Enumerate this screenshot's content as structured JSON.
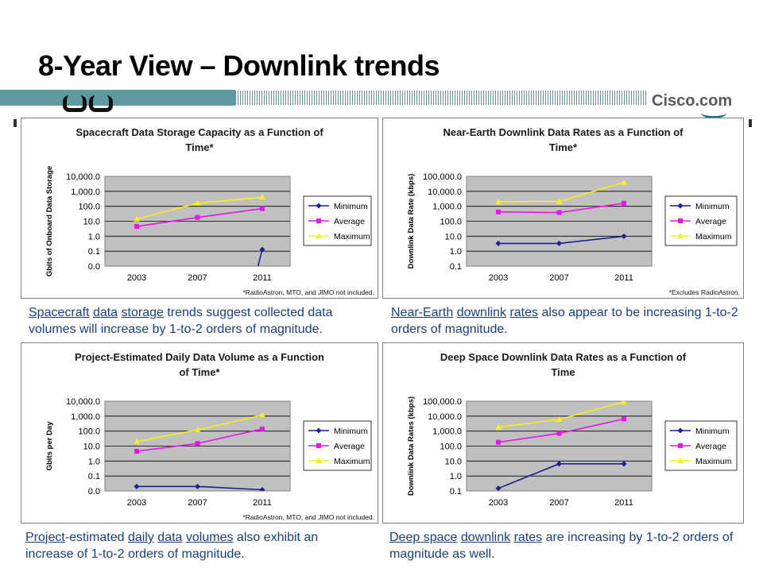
{
  "slide": {
    "title": "8-Year View – Downlink trends",
    "logo_text": "Cisco.com"
  },
  "colors": {
    "minimum": "#1f1f8f",
    "average": "#e617e6",
    "maximum": "#f2f21a",
    "plot_bg": "#c0c0c0",
    "caption": "#1c3f7a",
    "band": "#5f9aa2"
  },
  "chart_data": [
    {
      "type": "line",
      "title_line1": "Spacecraft Data Storage Capacity as a Function of",
      "title_line2": "Time*",
      "ylabel": "Gbits of Onboard Data Storage",
      "xlabel": "",
      "x": [
        "2003",
        "2007",
        "2011"
      ],
      "y_ticks": [
        "0.0",
        "0.1",
        "1.0",
        "10.0",
        "100.0",
        "1,000.0",
        "10,000.0"
      ],
      "y_scale": "log",
      "series": [
        {
          "name": "Minimum",
          "values": [
            null,
            null,
            0.13
          ]
        },
        {
          "name": "Average",
          "values": [
            4.5,
            18,
            70
          ]
        },
        {
          "name": "Maximum",
          "values": [
            14,
            160,
            400
          ]
        }
      ],
      "footnote": "*RadioAstron, MTO, and JIMO not included.",
      "legend": "right"
    },
    {
      "type": "line",
      "title_line1": "Near-Earth Downlink Data Rates as a Function of",
      "title_line2": "Time*",
      "ylabel": "Downlink Data Rate (kbps)",
      "xlabel": "",
      "x": [
        "2003",
        "2007",
        "2011"
      ],
      "y_ticks": [
        "0.1",
        "1.0",
        "10.0",
        "100.0",
        "1,000.0",
        "10,000.0",
        "100,000.0"
      ],
      "y_scale": "log",
      "series": [
        {
          "name": "Minimum",
          "values": [
            3.3,
            3.3,
            10
          ]
        },
        {
          "name": "Average",
          "values": [
            420,
            380,
            1600
          ]
        },
        {
          "name": "Maximum",
          "values": [
            2000,
            2100,
            40000
          ]
        }
      ],
      "footnote": "*Excludes RadioAstron.",
      "legend": "right"
    },
    {
      "type": "line",
      "title_line1": "Project-Estimated Daily Data Volume as a Function",
      "title_line2": "of Time*",
      "ylabel": "Gbits per Day",
      "xlabel": "",
      "x": [
        "2003",
        "2007",
        "2011"
      ],
      "y_ticks": [
        "0.0",
        "0.1",
        "1.0",
        "10.0",
        "100.0",
        "1,000.0",
        "10,000.0"
      ],
      "y_scale": "log",
      "series": [
        {
          "name": "Minimum",
          "values": [
            0.02,
            0.02,
            0.012
          ]
        },
        {
          "name": "Average",
          "values": [
            4.5,
            15,
            140
          ]
        },
        {
          "name": "Maximum",
          "values": [
            20,
            120,
            1200
          ]
        }
      ],
      "footnote": "*RadioAstron, MTO, and JIMO not included.",
      "legend": "right"
    },
    {
      "type": "line",
      "title_line1": "Deep Space Downlink Data Rates as a Function of",
      "title_line2": "Time",
      "ylabel": "Downlink Data Rates (kbps)",
      "xlabel": "",
      "x": [
        "2003",
        "2007",
        "2011"
      ],
      "y_ticks": [
        "0.1",
        "1.0",
        "10.0",
        "100.0",
        "1,000.0",
        "10,000.0",
        "100,000.0"
      ],
      "y_scale": "log",
      "series": [
        {
          "name": "Minimum",
          "values": [
            0.15,
            6.5,
            6.5
          ]
        },
        {
          "name": "Average",
          "values": [
            180,
            700,
            6500
          ]
        },
        {
          "name": "Maximum",
          "values": [
            1800,
            6000,
            90000
          ]
        }
      ],
      "footnote": "",
      "legend": "right"
    }
  ],
  "captions": [
    {
      "parts": [
        {
          "t": "Spacecraft",
          "u": true
        },
        {
          "t": " ",
          "u": false
        },
        {
          "t": "data",
          "u": true
        },
        {
          "t": " ",
          "u": false
        },
        {
          "t": "storage",
          "u": true
        },
        {
          "t": " trends suggest collected data volumes will increase by 1-to-2 orders of magnitude.",
          "u": false
        }
      ]
    },
    {
      "parts": [
        {
          "t": "Near-Earth",
          "u": true
        },
        {
          "t": " ",
          "u": false
        },
        {
          "t": "downlink",
          "u": true
        },
        {
          "t": " ",
          "u": false
        },
        {
          "t": "rates",
          "u": true
        },
        {
          "t": " also appear to be increasing 1-to-2 orders of magnitude.",
          "u": false
        }
      ]
    },
    {
      "parts": [
        {
          "t": "Project",
          "u": true
        },
        {
          "t": "-estimated ",
          "u": false
        },
        {
          "t": "daily",
          "u": true
        },
        {
          "t": " ",
          "u": false
        },
        {
          "t": "data",
          "u": true
        },
        {
          "t": " ",
          "u": false
        },
        {
          "t": "volumes",
          "u": true
        },
        {
          "t": " also exhibit an increase of 1-to-2 orders of magnitude.",
          "u": false
        }
      ]
    },
    {
      "parts": [
        {
          "t": "Deep space",
          "u": true
        },
        {
          "t": " ",
          "u": false
        },
        {
          "t": "downlink",
          "u": true
        },
        {
          "t": " ",
          "u": false
        },
        {
          "t": "rates",
          "u": true
        },
        {
          "t": " are increasing by 1-to-2 orders of magnitude as well.",
          "u": false
        }
      ]
    }
  ]
}
